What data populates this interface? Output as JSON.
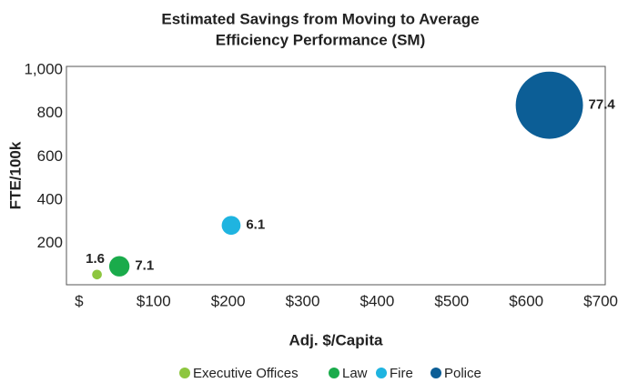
{
  "chart_data": {
    "type": "bubble",
    "title": [
      "Estimated Savings from Moving to Average",
      "Efficiency Performance (SM)"
    ],
    "x_label": "Adj. $/Capita",
    "y_label": "FTE/100k",
    "xlim": [
      -17,
      706
    ],
    "ylim": [
      10,
      1017
    ],
    "xticks": [
      {
        "value": 0,
        "label": "$"
      },
      {
        "value": 100,
        "label": "$100"
      },
      {
        "value": 200,
        "label": "$200"
      },
      {
        "value": 300,
        "label": "$300"
      },
      {
        "value": 400,
        "label": "$400"
      },
      {
        "value": 500,
        "label": "$500"
      },
      {
        "value": 600,
        "label": "$600"
      },
      {
        "value": 700,
        "label": "$700"
      }
    ],
    "yticks": [
      200,
      400,
      600,
      800,
      {
        "value": 1000,
        "label": "1,000"
      }
    ],
    "legend": "bottom",
    "series": [
      {
        "name": "Executive Offices",
        "color": "#8dc63f",
        "x": [
          24
        ],
        "values": [
          57
        ],
        "size": [
          1.6
        ]
      },
      {
        "name": "Law",
        "color": "#1aab4b",
        "x": [
          54
        ],
        "values": [
          95
        ],
        "size": [
          7.1
        ]
      },
      {
        "name": "Fire",
        "color": "#1fb4e0",
        "x": [
          204
        ],
        "values": [
          284
        ],
        "size": [
          6.1
        ]
      },
      {
        "name": "Police",
        "color": "#0c5e96",
        "x": [
          631
        ],
        "values": [
          838
        ],
        "size": [
          77.4
        ]
      }
    ]
  }
}
